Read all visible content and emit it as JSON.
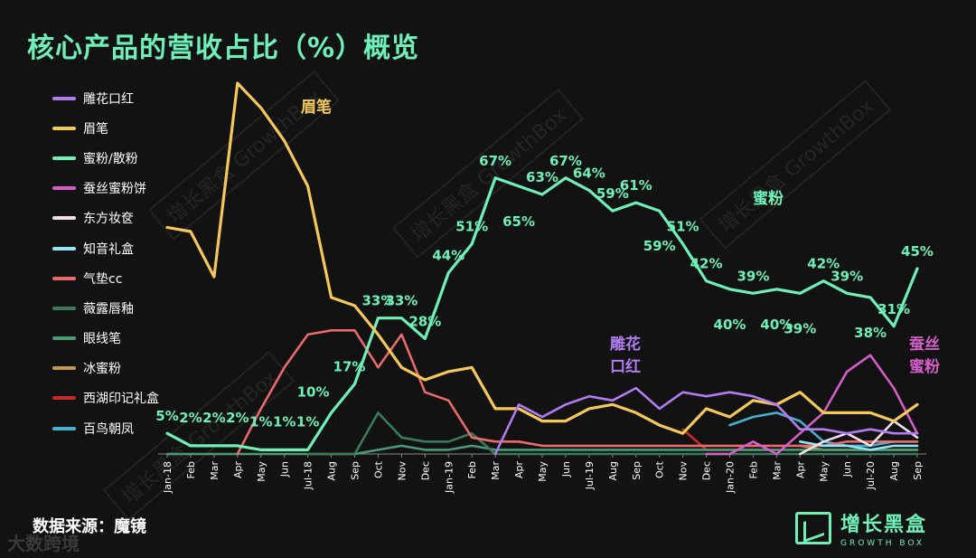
{
  "title": "核心产品的营收占比（%）概览",
  "source": "数据来源：魔镜",
  "corner_mark": "大数跨境",
  "brand": {
    "cn": "增长黑盒",
    "en": "GROWTH BOX"
  },
  "watermark": "增长黑盒 GrowthBox",
  "chart_data": {
    "type": "line",
    "x": [
      "Jan-18",
      "Feb-18",
      "Mar-18",
      "Apr-18",
      "May-18",
      "Jun-18",
      "Jul-18",
      "Aug-18",
      "Sep-18",
      "Oct-18",
      "Nov-18",
      "Dec-18",
      "Jan-19",
      "Feb-19",
      "Mar-19",
      "Apr-19",
      "May-19",
      "Jun-19",
      "Jul-19",
      "Aug-19",
      "Sep-19",
      "Oct-19",
      "Nov-19",
      "Dec-19",
      "Jan-20",
      "Feb-20",
      "Mar-20",
      "Apr-20",
      "May-20",
      "Jun-20",
      "Jul-20",
      "Aug-20",
      "Sep-20"
    ],
    "tick_labels": [
      "Jan-18",
      "Feb",
      "Mar",
      "Apr",
      "May",
      "Jun",
      "Jul-18",
      "Aug",
      "Sep",
      "Oct",
      "Nov",
      "Dec",
      "Jan-19",
      "Feb",
      "Mar",
      "Apr",
      "May",
      "Jun",
      "Jul-19",
      "Aug",
      "Sep",
      "Oct",
      "Nov",
      "Dec",
      "Jan-20",
      "Feb",
      "Mar",
      "Apr",
      "May",
      "Jun",
      "Jul-20",
      "Aug",
      "Sep"
    ],
    "ylim": [
      0,
      90
    ],
    "series": [
      {
        "name": "雕花口红",
        "color": "#b07cf0",
        "values": [
          null,
          null,
          null,
          null,
          null,
          null,
          null,
          null,
          null,
          null,
          null,
          null,
          null,
          null,
          0,
          12,
          9,
          12,
          14,
          13,
          16,
          11,
          15,
          14,
          15,
          14,
          12,
          6,
          6,
          5,
          6,
          5,
          5
        ]
      },
      {
        "name": "眉笔",
        "color": "#f5c85a",
        "values": [
          55,
          54,
          43,
          90,
          84,
          76,
          65,
          38,
          36,
          29,
          21,
          18,
          20,
          21,
          11,
          11,
          8,
          8,
          11,
          12,
          10,
          7,
          5,
          11,
          9,
          13,
          12,
          15,
          10,
          10,
          10,
          8,
          12
        ]
      },
      {
        "name": "蜜粉/散粉",
        "color": "#6ff0b8",
        "values": [
          5,
          2,
          2,
          2,
          1,
          1,
          1,
          10,
          17,
          33,
          33,
          28,
          44,
          51,
          67,
          65,
          63,
          67,
          64,
          59,
          61,
          59,
          51,
          42,
          40,
          39,
          40,
          39,
          42,
          39,
          38,
          31,
          45
        ]
      },
      {
        "name": "蚕丝蜜粉饼",
        "color": "#d45ec8",
        "values": [
          null,
          null,
          null,
          null,
          null,
          null,
          null,
          null,
          null,
          null,
          null,
          null,
          null,
          null,
          null,
          null,
          null,
          null,
          null,
          null,
          null,
          null,
          null,
          0,
          0,
          3,
          0,
          5,
          10,
          20,
          24,
          16,
          5
        ]
      },
      {
        "name": "东方妆奁",
        "color": "#f2e0e8",
        "values": [
          null,
          null,
          null,
          null,
          null,
          null,
          null,
          null,
          null,
          null,
          null,
          null,
          null,
          null,
          null,
          null,
          null,
          null,
          null,
          null,
          null,
          null,
          null,
          null,
          null,
          null,
          null,
          0,
          3,
          5,
          2,
          8,
          4
        ]
      },
      {
        "name": "知音礼盒",
        "color": "#8ee8f5",
        "values": [
          null,
          null,
          null,
          null,
          null,
          null,
          null,
          null,
          null,
          null,
          null,
          null,
          null,
          null,
          null,
          null,
          null,
          null,
          null,
          null,
          null,
          null,
          null,
          null,
          null,
          null,
          null,
          3,
          2,
          2,
          1,
          2,
          2
        ]
      },
      {
        "name": "气垫cc",
        "color": "#e86a6a",
        "values": [
          null,
          null,
          null,
          0,
          11,
          21,
          29,
          30,
          30,
          21,
          29,
          15,
          13,
          4,
          3,
          3,
          2,
          2,
          2,
          2,
          2,
          2,
          2,
          2,
          2,
          2,
          2,
          2,
          2,
          3,
          3,
          3,
          3
        ]
      },
      {
        "name": "薇露唇釉",
        "color": "#3a7a5a",
        "values": [
          null,
          null,
          null,
          null,
          null,
          null,
          0,
          0,
          0,
          10,
          4,
          3,
          3,
          5,
          0,
          0,
          0,
          0,
          0,
          0,
          0,
          0,
          0,
          0,
          0,
          0,
          0,
          0,
          0,
          0,
          0,
          0,
          0
        ]
      },
      {
        "name": "眼线笔",
        "color": "#4a9a78",
        "values": [
          0,
          0,
          0,
          0,
          0,
          0,
          0,
          0,
          0,
          1,
          2,
          1,
          1,
          2,
          1,
          1,
          1,
          1,
          1,
          1,
          1,
          1,
          1,
          1,
          1,
          1,
          1,
          1,
          1,
          1,
          1,
          1,
          1
        ]
      },
      {
        "name": "冰蜜粉",
        "color": "#c09a4a",
        "values": [
          null,
          null,
          null,
          null,
          null,
          null,
          null,
          null,
          null,
          null,
          null,
          null,
          null,
          null,
          null,
          null,
          null,
          null,
          null,
          null,
          null,
          null,
          null,
          null,
          null,
          null,
          null,
          2,
          1,
          1,
          1,
          1,
          1
        ]
      },
      {
        "name": "西湖印记礼盒",
        "color": "#c82a2a",
        "values": [
          null,
          null,
          null,
          null,
          null,
          null,
          null,
          null,
          null,
          null,
          null,
          null,
          null,
          null,
          null,
          null,
          null,
          null,
          null,
          null,
          null,
          null,
          6,
          1,
          1,
          1,
          1,
          null,
          null,
          null,
          null,
          null,
          null
        ]
      },
      {
        "name": "百鸟朝凤",
        "color": "#4aaed0",
        "values": [
          null,
          null,
          null,
          null,
          null,
          null,
          null,
          null,
          null,
          null,
          null,
          null,
          null,
          null,
          null,
          null,
          null,
          null,
          null,
          null,
          null,
          null,
          null,
          null,
          7,
          9,
          10,
          8,
          3,
          2,
          2,
          3,
          3
        ]
      }
    ],
    "data_labels": [
      {
        "i": 0,
        "text": "5%"
      },
      {
        "i": 1,
        "text": "2%"
      },
      {
        "i": 2,
        "text": "2%"
      },
      {
        "i": 3,
        "text": "2%"
      },
      {
        "i": 4,
        "text": "1%"
      },
      {
        "i": 5,
        "text": "1%"
      },
      {
        "i": 6,
        "text": "1%"
      },
      {
        "i": 7,
        "text": "10%"
      },
      {
        "i": 8,
        "text": "17%"
      },
      {
        "i": 9,
        "text": "33%"
      },
      {
        "i": 10,
        "text": "33%"
      },
      {
        "i": 11,
        "text": "28%"
      },
      {
        "i": 12,
        "text": "44%"
      },
      {
        "i": 13,
        "text": "51%"
      },
      {
        "i": 14,
        "text": "67%"
      },
      {
        "i": 15,
        "text": "65%"
      },
      {
        "i": 16,
        "text": "63%"
      },
      {
        "i": 17,
        "text": "67%"
      },
      {
        "i": 18,
        "text": "64%"
      },
      {
        "i": 19,
        "text": "59%"
      },
      {
        "i": 20,
        "text": "61%"
      },
      {
        "i": 21,
        "text": "59%"
      },
      {
        "i": 22,
        "text": "51%"
      },
      {
        "i": 23,
        "text": "42%"
      },
      {
        "i": 24,
        "text": "40%"
      },
      {
        "i": 25,
        "text": "39%"
      },
      {
        "i": 26,
        "text": "40%"
      },
      {
        "i": 27,
        "text": "39%"
      },
      {
        "i": 28,
        "text": "42%"
      },
      {
        "i": 29,
        "text": "39%"
      },
      {
        "i": 30,
        "text": "38%"
      },
      {
        "i": 31,
        "text": "31%"
      },
      {
        "i": 32,
        "text": "45%"
      }
    ],
    "annotations": [
      {
        "text": "眉笔",
        "color": "#f5c85a"
      },
      {
        "text": "蜜粉",
        "color": "#6ff0b8"
      },
      {
        "text": "雕花",
        "color": "#b07cf0"
      },
      {
        "text": "口红",
        "color": "#b07cf0"
      },
      {
        "text": "蚕丝",
        "color": "#d45ec8"
      },
      {
        "text": "蜜粉",
        "color": "#d45ec8"
      }
    ]
  }
}
